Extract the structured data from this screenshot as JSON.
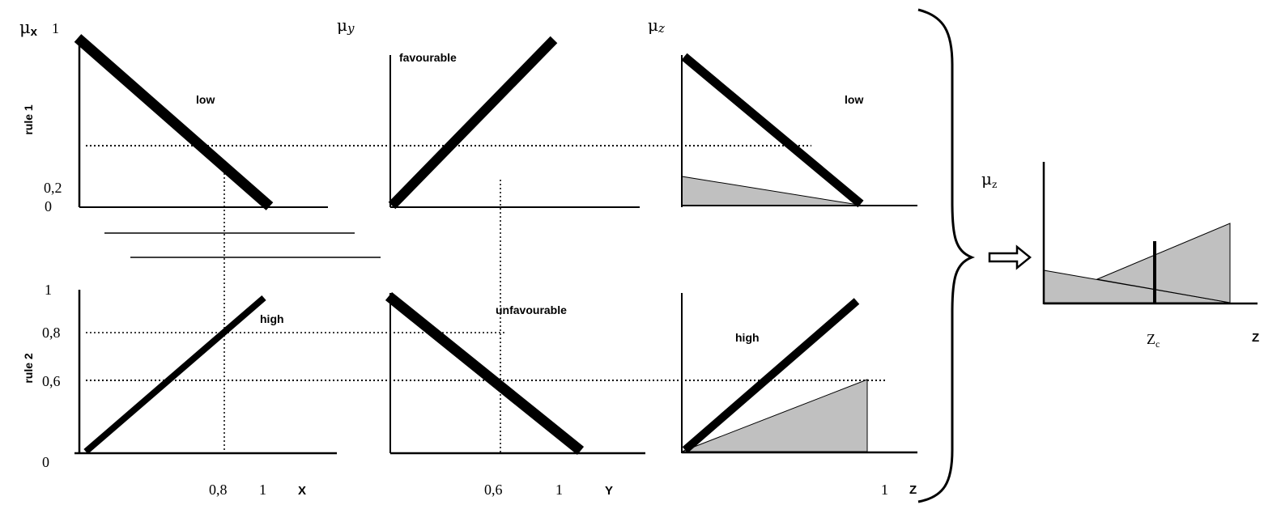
{
  "rules": {
    "rule1": "rule 1",
    "rule2": "rule 2"
  },
  "axes": {
    "mu_x": "μ",
    "mu_x_sub": "x",
    "mu_y": "μ",
    "mu_y_sub": "y",
    "mu_z": "μ",
    "mu_z_sub": "z",
    "mu_out": "μ",
    "mu_out_sub": "z",
    "x_label": "X",
    "y_label": "Y",
    "z_label": "Z",
    "z_out_label": "Z",
    "zc_main": "Z",
    "zc_sub": "c"
  },
  "ticks": {
    "one_top": "1",
    "r1_02": "0,2",
    "r1_0": "0",
    "r2_1": "1",
    "r2_08": "0,8",
    "r2_06": "0,6",
    "r2_0": "0",
    "x_08": "0,8",
    "x_1": "1",
    "y_06": "0,6",
    "y_1": "1",
    "z_1": "1"
  },
  "sets": {
    "x_low": "low",
    "y_favourable": "favourable",
    "z_low": "low",
    "x_high": "high",
    "y_unfavourable": "unfavourable",
    "z_high": "high"
  },
  "colors": {
    "ink": "#000000",
    "fill": "#c0c0c0"
  }
}
